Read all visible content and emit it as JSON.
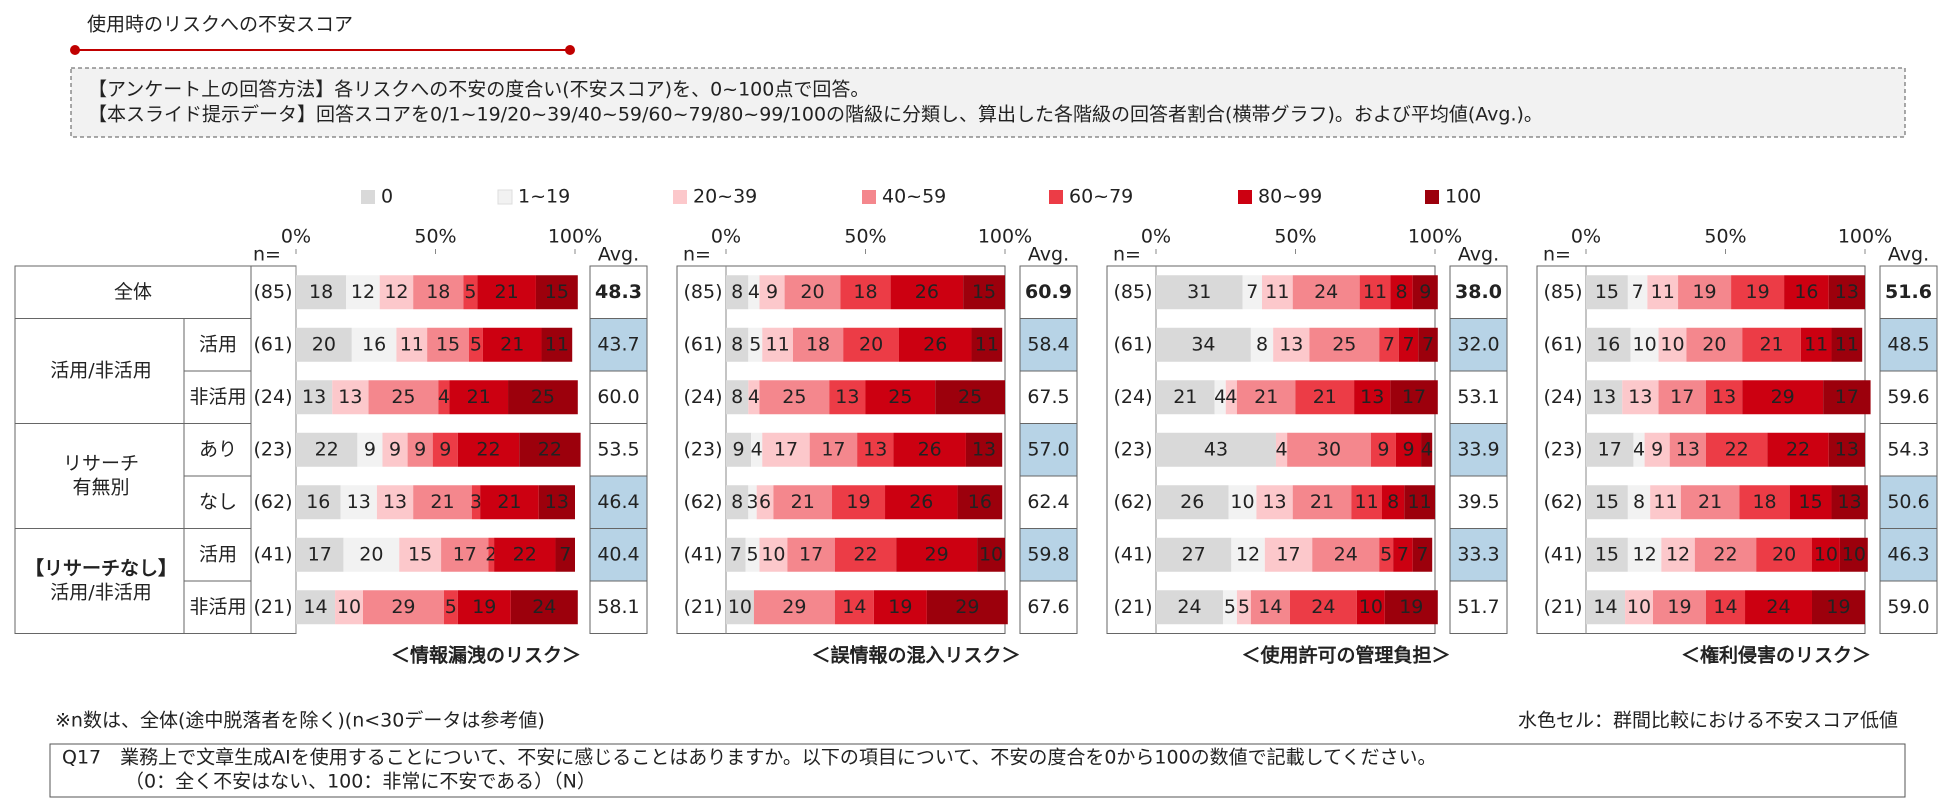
{
  "header": {
    "title": "使用時のリスクへの不安スコア",
    "method": [
      "【アンケート上の回答方法】各リスクへの不安の度合い(不安スコア)を、0~100点で回答。",
      "【本スライド提示データ】回答スコアを0/1~19/20~39/40~59/60~79/80~99/100の階級に分類し、算出した各階級の回答者割合(横帯グラフ)。および平均値(Avg.)。"
    ]
  },
  "legend": [
    {
      "name": "0",
      "color": "#d9d9d9",
      "label_color": "#333333"
    },
    {
      "name": "1~19",
      "color": "#f2f2f2",
      "label_color": "#333333"
    },
    {
      "name": "20~39",
      "color": "#fcc8cb",
      "label_color": "#333333"
    },
    {
      "name": "40~59",
      "color": "#f4878d",
      "label_color": "#ffffff"
    },
    {
      "name": "60~79",
      "color": "#ec3c46",
      "label_color": "#ffffff"
    },
    {
      "name": "80~99",
      "color": "#cc0011",
      "label_color": "#ffffff"
    },
    {
      "name": "100",
      "color": "#9c000c",
      "label_color": "#ffffff"
    }
  ],
  "rows": {
    "groups": [
      {
        "label": [
          "全体"
        ],
        "rows": []
      },
      {
        "label": [
          "活用/非活用"
        ],
        "rows": [
          "活用",
          "非活用"
        ]
      },
      {
        "label": [
          "リサーチ",
          "有無別"
        ],
        "rows": [
          "あり",
          "なし"
        ]
      },
      {
        "label": [
          "【リサーチなし】",
          "活用/非活用"
        ],
        "rows": [
          "活用",
          "非活用"
        ]
      }
    ],
    "n_header": "n=",
    "n": [
      "(85)",
      "(61)",
      "(24)",
      "(23)",
      "(62)",
      "(41)",
      "(21)"
    ],
    "avg_header": "Avg.",
    "low_color": "#b7d3e6"
  },
  "chart_data": [
    {
      "type": "bar",
      "stacked": true,
      "title": "＜情報漏洩のリスク＞",
      "xlim": [
        0,
        100
      ],
      "xticks": [
        {
          "value": 0,
          "label": "0%"
        },
        {
          "value": 50,
          "label": "50%"
        },
        {
          "value": 100,
          "label": "100%"
        }
      ],
      "series": [
        {
          "values": [
            18,
            20,
            13,
            22,
            16,
            17,
            14
          ]
        },
        {
          "values": [
            12,
            16,
            0,
            9,
            13,
            20,
            0
          ]
        },
        {
          "values": [
            12,
            11,
            13,
            9,
            13,
            15,
            10
          ]
        },
        {
          "values": [
            18,
            15,
            25,
            9,
            21,
            17,
            29
          ]
        },
        {
          "values": [
            5,
            5,
            4,
            9,
            3,
            2,
            5
          ]
        },
        {
          "values": [
            21,
            21,
            21,
            22,
            21,
            22,
            19
          ]
        },
        {
          "values": [
            15,
            11,
            25,
            22,
            13,
            7,
            24
          ]
        }
      ],
      "avg": [
        "48.3",
        "43.7",
        "60.0",
        "53.5",
        "46.4",
        "40.4",
        "58.1"
      ],
      "avg_low": [
        false,
        true,
        false,
        false,
        true,
        true,
        false
      ]
    },
    {
      "type": "bar",
      "stacked": true,
      "title": "＜誤情報の混入リスク＞",
      "xlim": [
        0,
        100
      ],
      "xticks": [
        {
          "value": 0,
          "label": "0%"
        },
        {
          "value": 50,
          "label": "50%"
        },
        {
          "value": 100,
          "label": "100%"
        }
      ],
      "series": [
        {
          "values": [
            8,
            8,
            8,
            9,
            8,
            7,
            10
          ]
        },
        {
          "values": [
            4,
            5,
            0,
            4,
            3,
            5,
            0
          ]
        },
        {
          "values": [
            9,
            11,
            4,
            17,
            6,
            10,
            0
          ]
        },
        {
          "values": [
            20,
            18,
            25,
            17,
            21,
            17,
            29
          ]
        },
        {
          "values": [
            18,
            20,
            13,
            13,
            19,
            22,
            14
          ]
        },
        {
          "values": [
            26,
            26,
            25,
            26,
            26,
            29,
            19
          ]
        },
        {
          "values": [
            15,
            11,
            25,
            13,
            16,
            10,
            29
          ]
        }
      ],
      "avg": [
        "60.9",
        "58.4",
        "67.5",
        "57.0",
        "62.4",
        "59.8",
        "67.6"
      ],
      "avg_low": [
        false,
        true,
        false,
        true,
        false,
        true,
        false
      ]
    },
    {
      "type": "bar",
      "stacked": true,
      "title": "＜使用許可の管理負担＞",
      "xlim": [
        0,
        100
      ],
      "xticks": [
        {
          "value": 0,
          "label": "0%"
        },
        {
          "value": 50,
          "label": "50%"
        },
        {
          "value": 100,
          "label": "100%"
        }
      ],
      "series": [
        {
          "values": [
            31,
            34,
            21,
            43,
            26,
            27,
            24
          ]
        },
        {
          "values": [
            7,
            8,
            4,
            0,
            10,
            12,
            5
          ]
        },
        {
          "values": [
            11,
            13,
            4,
            4,
            13,
            17,
            5
          ]
        },
        {
          "values": [
            24,
            25,
            21,
            30,
            21,
            24,
            14
          ]
        },
        {
          "values": [
            11,
            7,
            21,
            9,
            11,
            5,
            24
          ]
        },
        {
          "values": [
            8,
            7,
            13,
            9,
            8,
            7,
            10
          ]
        },
        {
          "values": [
            9,
            7,
            17,
            4,
            11,
            7,
            19
          ]
        }
      ],
      "avg": [
        "38.0",
        "32.0",
        "53.1",
        "33.9",
        "39.5",
        "33.3",
        "51.7"
      ],
      "avg_low": [
        false,
        true,
        false,
        true,
        false,
        true,
        false
      ]
    },
    {
      "type": "bar",
      "stacked": true,
      "title": "＜権利侵害のリスク＞",
      "xlim": [
        0,
        100
      ],
      "xticks": [
        {
          "value": 0,
          "label": "0%"
        },
        {
          "value": 50,
          "label": "50%"
        },
        {
          "value": 100,
          "label": "100%"
        }
      ],
      "series": [
        {
          "values": [
            15,
            16,
            13,
            17,
            15,
            15,
            14
          ]
        },
        {
          "values": [
            7,
            10,
            0,
            4,
            8,
            12,
            0
          ]
        },
        {
          "values": [
            11,
            10,
            13,
            9,
            11,
            12,
            10
          ]
        },
        {
          "values": [
            19,
            20,
            17,
            13,
            21,
            22,
            19
          ]
        },
        {
          "values": [
            19,
            21,
            13,
            22,
            18,
            20,
            14
          ]
        },
        {
          "values": [
            16,
            11,
            29,
            22,
            15,
            10,
            24
          ]
        },
        {
          "values": [
            13,
            11,
            17,
            13,
            13,
            10,
            19
          ]
        }
      ],
      "avg": [
        "51.6",
        "48.5",
        "59.6",
        "54.3",
        "50.6",
        "46.3",
        "59.0"
      ],
      "avg_low": [
        false,
        true,
        false,
        false,
        true,
        true,
        false
      ]
    }
  ],
  "notes": {
    "n_note": "※n数は、全体(途中脱落者を除く)(n<30データは参考値)",
    "color_note": "水色セル：群間比較における不安スコア低値",
    "question": [
      "Q17　業務上で文章生成AIを使用することについて、不安に感じることはありますか。以下の項目について、不安の度合を0から100の数値で記載してください。",
      "（0：全く不安はない、100：非常に不安である）（N）"
    ]
  }
}
